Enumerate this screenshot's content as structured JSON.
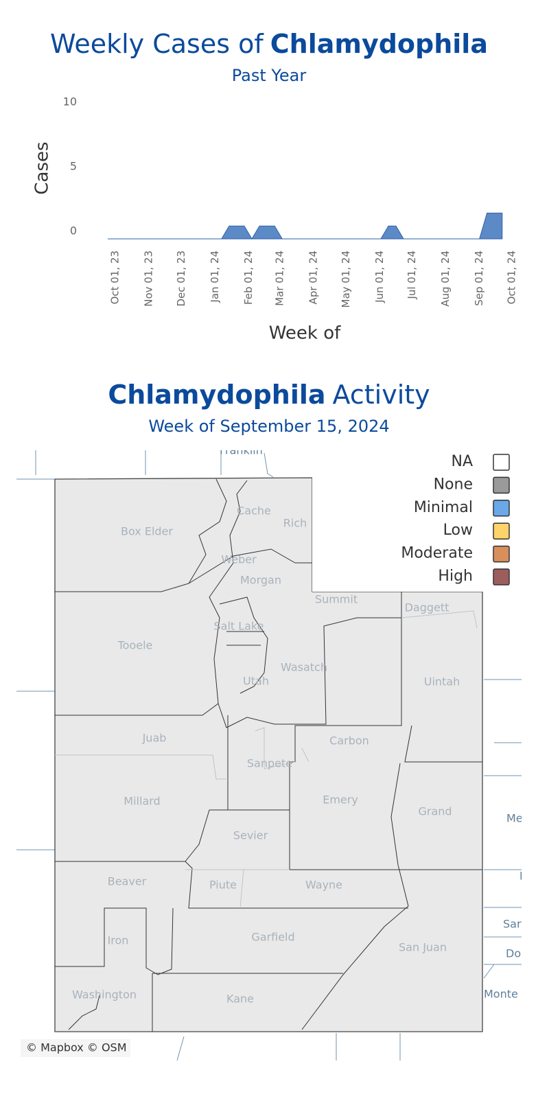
{
  "chart_data": {
    "type": "area",
    "title_prefix": "Weekly Cases of",
    "title_emphasis": "Chlamydophila",
    "subtitle": "Past Year",
    "y_label": "Cases",
    "x_label": "Week of",
    "color": "#5b8ac6",
    "x": [
      "2023-09-24",
      "2023-10-01",
      "2023-10-08",
      "2023-10-15",
      "2023-10-22",
      "2023-10-29",
      "2023-11-05",
      "2023-11-12",
      "2023-11-19",
      "2023-11-26",
      "2023-12-03",
      "2023-12-10",
      "2023-12-17",
      "2023-12-24",
      "2023-12-31",
      "2024-01-07",
      "2024-01-14",
      "2024-01-21",
      "2024-01-28",
      "2024-02-04",
      "2024-02-11",
      "2024-02-18",
      "2024-02-25",
      "2024-03-03",
      "2024-03-10",
      "2024-03-17",
      "2024-03-24",
      "2024-03-31",
      "2024-04-07",
      "2024-04-14",
      "2024-04-21",
      "2024-04-28",
      "2024-05-05",
      "2024-05-12",
      "2024-05-19",
      "2024-05-26",
      "2024-06-02",
      "2024-06-09",
      "2024-06-16",
      "2024-06-23",
      "2024-06-30",
      "2024-07-07",
      "2024-07-14",
      "2024-07-21",
      "2024-07-28",
      "2024-08-04",
      "2024-08-11",
      "2024-08-18",
      "2024-08-25",
      "2024-09-01",
      "2024-09-08",
      "2024-09-15",
      "2024-09-22"
    ],
    "values": [
      0,
      0,
      0,
      0,
      0,
      0,
      0,
      0,
      0,
      0,
      0,
      0,
      0,
      0,
      0,
      0,
      1,
      1,
      1,
      0,
      1,
      1,
      1,
      0,
      0,
      0,
      0,
      0,
      0,
      0,
      0,
      0,
      0,
      0,
      0,
      0,
      0,
      1,
      1,
      0,
      0,
      0,
      0,
      0,
      0,
      0,
      0,
      0,
      0,
      0,
      2,
      2,
      2
    ],
    "xlim": [
      "2023-09-24",
      "2024-10-01"
    ],
    "xticks": [
      {
        "value": "2023-10-01",
        "label": "Oct 01, 23"
      },
      {
        "value": "2023-11-01",
        "label": "Nov 01, 23"
      },
      {
        "value": "2023-12-01",
        "label": "Dec 01, 23"
      },
      {
        "value": "2024-01-01",
        "label": "Jan 01, 24"
      },
      {
        "value": "2024-02-01",
        "label": "Feb 01, 24"
      },
      {
        "value": "2024-03-01",
        "label": "Mar 01, 24"
      },
      {
        "value": "2024-04-01",
        "label": "Apr 01, 24"
      },
      {
        "value": "2024-05-01",
        "label": "May 01, 24"
      },
      {
        "value": "2024-06-01",
        "label": "Jun 01, 24"
      },
      {
        "value": "2024-07-01",
        "label": "Jul 01, 24"
      },
      {
        "value": "2024-08-01",
        "label": "Aug 01, 24"
      },
      {
        "value": "2024-09-01",
        "label": "Sep 01, 24"
      },
      {
        "value": "2024-10-01",
        "label": "Oct 01, 24"
      }
    ],
    "ylim": [
      0,
      10
    ],
    "yticks": [
      0,
      5,
      10
    ],
    "grid": false
  },
  "map": {
    "title_emphasis": "Chlamydophila",
    "title_rest": "Activity",
    "subtitle": "Week of September 15, 2024",
    "legend": [
      {
        "label": "NA",
        "color": "#ffffff"
      },
      {
        "label": "None",
        "color": "#9a9a9a"
      },
      {
        "label": "Minimal",
        "color": "#6aa8e8"
      },
      {
        "label": "Low",
        "color": "#fdd36a"
      },
      {
        "label": "Moderate",
        "color": "#d98f5c"
      },
      {
        "label": "High",
        "color": "#9c5d5d"
      }
    ],
    "counties": [
      "Box Elder",
      "Cache",
      "Rich",
      "Weber",
      "Morgan",
      "Summit",
      "Daggett",
      "Salt Lake",
      "Tooele",
      "Wasatch",
      "Utah",
      "Uintah",
      "Juab",
      "Carbon",
      "Sanpete",
      "Millard",
      "Emery",
      "Grand",
      "Sevier",
      "Beaver",
      "Piute",
      "Wayne",
      "Iron",
      "Garfield",
      "San Juan",
      "Washington",
      "Kane"
    ],
    "neighbors": [
      "Franklin",
      "Me",
      "N",
      "Sar",
      "Do",
      "Monte"
    ],
    "attribution": "© Mapbox © OSM"
  }
}
